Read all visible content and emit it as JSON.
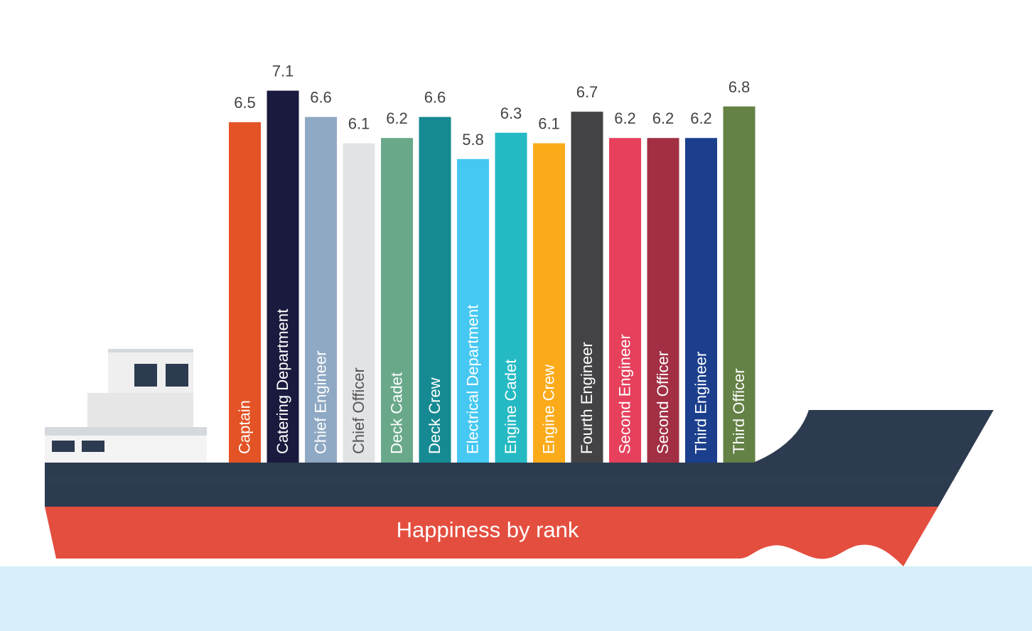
{
  "chart_data": {
    "type": "bar",
    "title": "Happiness by rank",
    "categories": [
      "Captain",
      "Catering Department",
      "Chief Engineer",
      "Chief Officer",
      "Deck Cadet",
      "Deck Crew",
      "Electrical Department",
      "Engine Cadet",
      "Engine Crew",
      "Fourth Engineer",
      "Second Engineer",
      "Second Officer",
      "Third Engineer",
      "Third Officer"
    ],
    "values": [
      6.5,
      7.1,
      6.6,
      6.1,
      6.2,
      6.6,
      5.8,
      6.3,
      6.1,
      6.7,
      6.2,
      6.2,
      6.2,
      6.8
    ],
    "value_labels": [
      "6.5",
      "7.1",
      "6.6",
      "6.1",
      "6.2",
      "6.6",
      "5.8",
      "6.3",
      "6.1",
      "6.7",
      "6.2",
      "6.2",
      "6.2",
      "6.8"
    ],
    "colors": [
      "#e35325",
      "#1a1a3e",
      "#8fa9c4",
      "#e2e3e5",
      "#69a98a",
      "#168a92",
      "#45c8f2",
      "#25bac3",
      "#fbab1a",
      "#434345",
      "#e6405d",
      "#a22f43",
      "#1b3f8c",
      "#648146"
    ],
    "label_colors": [
      "#ffffff",
      "#ffffff",
      "#ffffff",
      "#555555",
      "#ffffff",
      "#ffffff",
      "#ffffff",
      "#ffffff",
      "#ffffff",
      "#ffffff",
      "#ffffff",
      "#ffffff",
      "#ffffff",
      "#ffffff"
    ],
    "xlabel": "",
    "ylabel": "",
    "grid": false,
    "legend": "none"
  },
  "colors": {
    "hull_dark": "#2c3b4f",
    "hull_red": "#e44e3f",
    "water": "#d5eef9",
    "cabin_light": "#efefef",
    "cabin_trim": "#d5d9de"
  }
}
